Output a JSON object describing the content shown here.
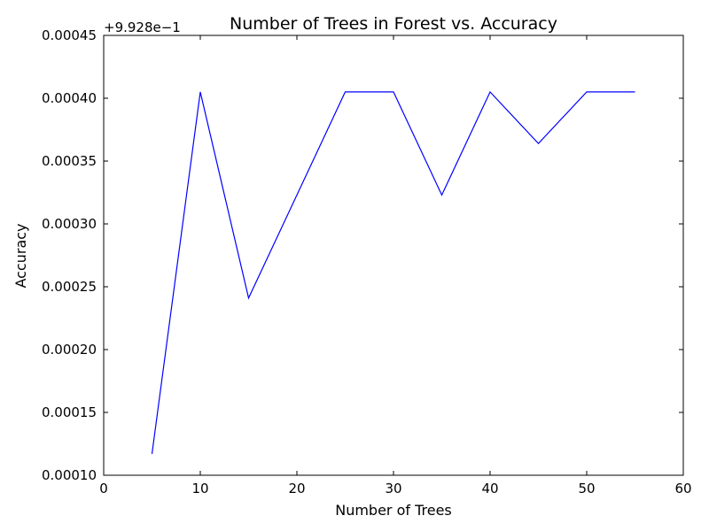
{
  "chart_data": {
    "type": "line",
    "title": "Number of Trees in Forest vs. Accuracy",
    "xlabel": "Number of Trees",
    "ylabel": "Accuracy",
    "y_offset_label": "+9.928e−1",
    "xlim": [
      0,
      60
    ],
    "ylim": [
      0.0001,
      0.00045
    ],
    "x_ticks": [
      0,
      10,
      20,
      30,
      40,
      50,
      60
    ],
    "x_tick_labels": [
      "0",
      "10",
      "20",
      "30",
      "40",
      "50",
      "60"
    ],
    "y_ticks": [
      0.0001,
      0.00015,
      0.0002,
      0.00025,
      0.0003,
      0.00035,
      0.0004,
      0.00045
    ],
    "y_tick_labels": [
      "0.00010",
      "0.00015",
      "0.00020",
      "0.00025",
      "0.00030",
      "0.00035",
      "0.00040",
      "0.00045"
    ],
    "grid": false,
    "legend": "none",
    "series": [
      {
        "color": "#0000ff",
        "x": [
          5,
          10,
          15,
          20,
          25,
          30,
          35,
          40,
          45,
          50,
          55
        ],
        "y": [
          0.000117,
          0.000405,
          0.000241,
          0.000323,
          0.000405,
          0.000405,
          0.000323,
          0.000405,
          0.000364,
          0.000405,
          0.000405
        ]
      }
    ]
  }
}
